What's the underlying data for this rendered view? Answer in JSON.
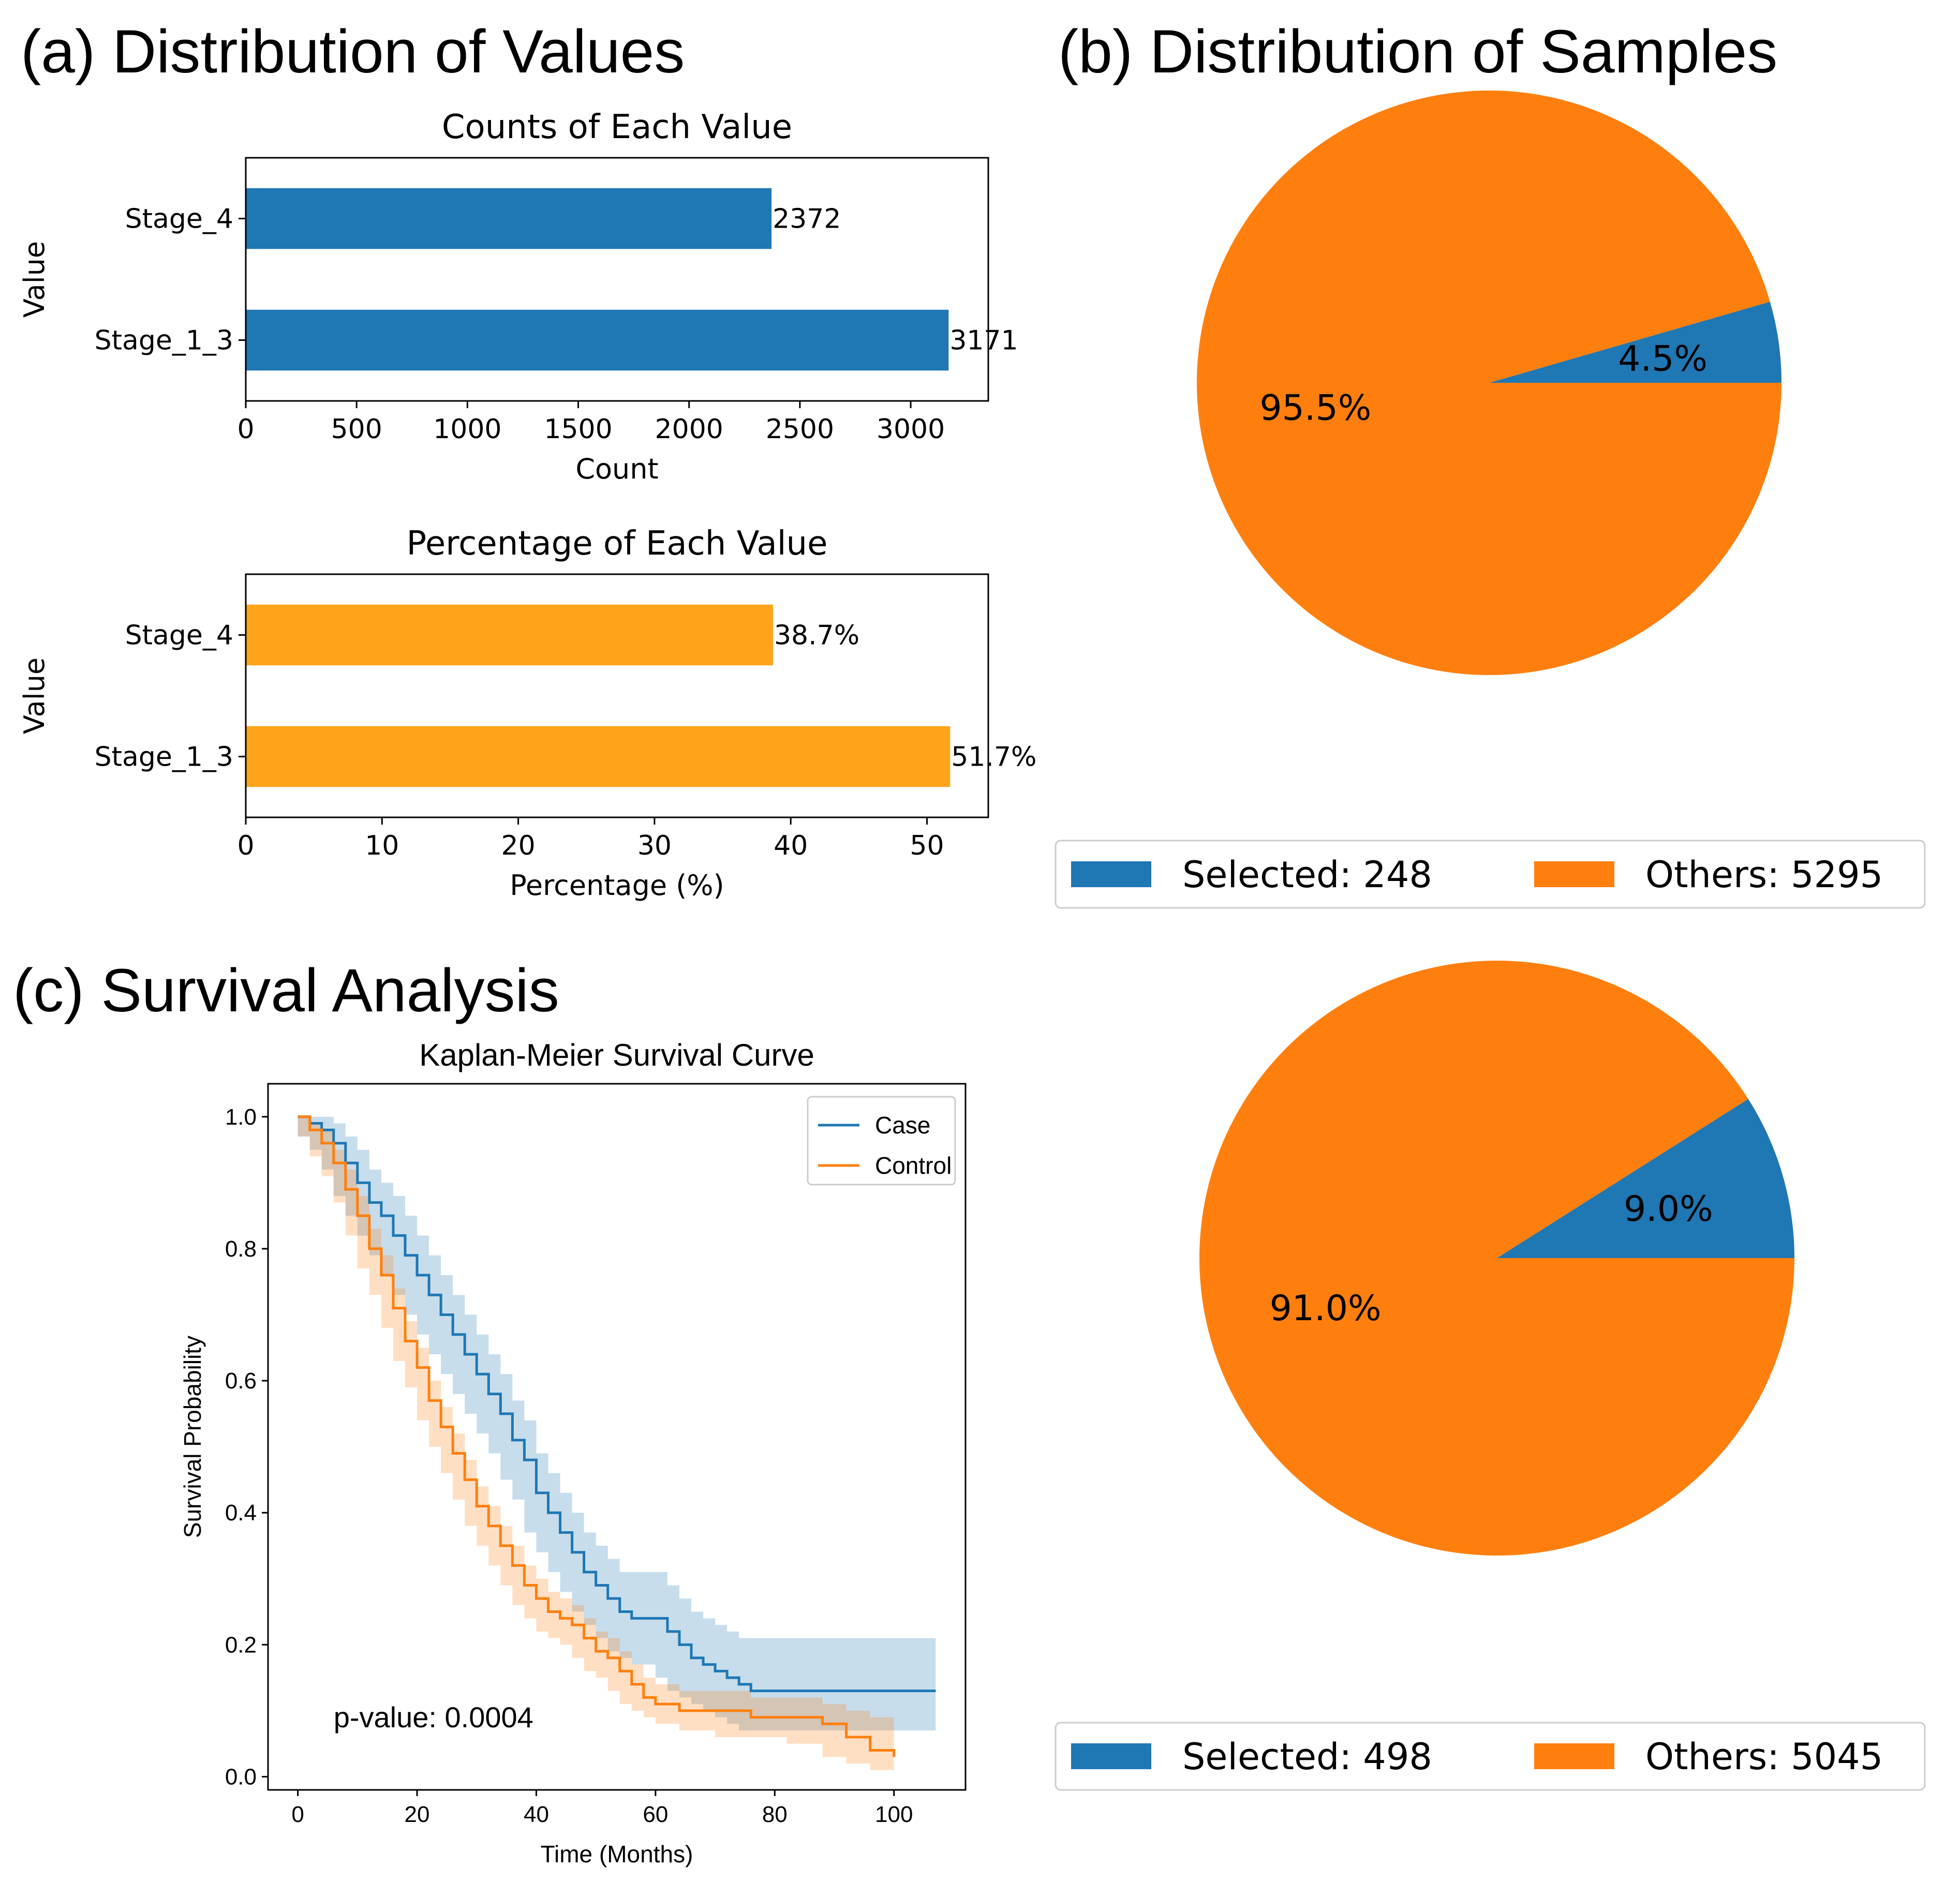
{
  "panels": {
    "a_title": "(a) Distribution of Values",
    "b_title": "(b) Distribution of Samples",
    "c_title": "(c) Survival Analysis"
  },
  "colors": {
    "blue": "#1f77b4",
    "orange": "#ff7f0e",
    "amber": "#ffa41b"
  },
  "chart_data": [
    {
      "id": "counts",
      "type": "bar",
      "orientation": "horizontal",
      "title": "Counts of Each Value",
      "xlabel": "Count",
      "ylabel": "Value",
      "categories": [
        "Stage_4",
        "Stage_1_3"
      ],
      "values": [
        2372,
        3171
      ],
      "value_labels": [
        "2372",
        "3171"
      ],
      "xlim": [
        0,
        3350
      ],
      "xticks": [
        0,
        500,
        1000,
        1500,
        2000,
        2500,
        3000
      ],
      "xtick_labels": [
        "0",
        "500",
        "1000",
        "1500",
        "2000",
        "2500",
        "3000"
      ]
    },
    {
      "id": "percentage",
      "type": "bar",
      "orientation": "horizontal",
      "title": "Percentage of Each Value",
      "xlabel": "Percentage (%)",
      "ylabel": "Value",
      "categories": [
        "Stage_4",
        "Stage_1_3"
      ],
      "values": [
        38.7,
        51.7
      ],
      "value_labels": [
        "38.7%",
        "51.7%"
      ],
      "xlim": [
        0,
        54.5
      ],
      "xticks": [
        0,
        10,
        20,
        30,
        40,
        50
      ],
      "xtick_labels": [
        "0",
        "10",
        "20",
        "30",
        "40",
        "50"
      ]
    },
    {
      "id": "pie1",
      "type": "pie",
      "slices": [
        {
          "name": "Selected",
          "value": 248,
          "pct_label": "4.5%"
        },
        {
          "name": "Others",
          "value": 5295,
          "pct_label": "95.5%"
        }
      ],
      "legend": [
        "Selected: 248",
        "Others: 5295"
      ],
      "legend_position": "bottom"
    },
    {
      "id": "pie2",
      "type": "pie",
      "slices": [
        {
          "name": "Selected",
          "value": 498,
          "pct_label": "9.0%"
        },
        {
          "name": "Others",
          "value": 5045,
          "pct_label": "91.0%"
        }
      ],
      "legend": [
        "Selected: 498",
        "Others: 5045"
      ],
      "legend_position": "bottom"
    },
    {
      "id": "km",
      "type": "line",
      "title": "Kaplan-Meier Survival Curve",
      "xlabel": "Time (Months)",
      "ylabel": "Survival Probability",
      "xlim": [
        -5,
        112
      ],
      "ylim": [
        -0.02,
        1.05
      ],
      "xticks": [
        0,
        20,
        40,
        60,
        80,
        100
      ],
      "xtick_labels": [
        "0",
        "20",
        "40",
        "60",
        "80",
        "100"
      ],
      "yticks": [
        0.0,
        0.2,
        0.4,
        0.6,
        0.8,
        1.0
      ],
      "ytick_labels": [
        "0.0",
        "0.2",
        "0.4",
        "0.6",
        "0.8",
        "1.0"
      ],
      "legend": [
        "Case",
        "Control"
      ],
      "legend_position": "top-right",
      "annotation": "p-value: 0.0004",
      "series": [
        {
          "name": "Case",
          "x": [
            0,
            2,
            4,
            6,
            8,
            10,
            12,
            14,
            16,
            18,
            20,
            22,
            24,
            26,
            28,
            30,
            32,
            34,
            36,
            38,
            40,
            42,
            44,
            46,
            48,
            50,
            52,
            54,
            56,
            58,
            60,
            62,
            64,
            66,
            68,
            70,
            72,
            74,
            76,
            80,
            90,
            107
          ],
          "y": [
            1.0,
            0.99,
            0.98,
            0.96,
            0.93,
            0.9,
            0.87,
            0.85,
            0.82,
            0.79,
            0.76,
            0.73,
            0.7,
            0.67,
            0.64,
            0.61,
            0.58,
            0.55,
            0.51,
            0.48,
            0.43,
            0.4,
            0.37,
            0.34,
            0.31,
            0.29,
            0.27,
            0.25,
            0.24,
            0.24,
            0.24,
            0.22,
            0.2,
            0.18,
            0.17,
            0.16,
            0.15,
            0.14,
            0.13,
            0.13,
            0.13,
            0.13
          ],
          "ci_low": [
            1.0,
            0.97,
            0.95,
            0.92,
            0.88,
            0.85,
            0.82,
            0.79,
            0.76,
            0.73,
            0.7,
            0.67,
            0.64,
            0.61,
            0.58,
            0.55,
            0.52,
            0.49,
            0.45,
            0.42,
            0.37,
            0.34,
            0.31,
            0.28,
            0.25,
            0.23,
            0.21,
            0.19,
            0.18,
            0.17,
            0.17,
            0.15,
            0.13,
            0.12,
            0.11,
            0.1,
            0.09,
            0.08,
            0.07,
            0.07,
            0.07,
            0.07
          ],
          "ci_high": [
            1.0,
            1.0,
            1.0,
            0.99,
            0.97,
            0.95,
            0.92,
            0.9,
            0.88,
            0.85,
            0.82,
            0.79,
            0.76,
            0.73,
            0.7,
            0.67,
            0.64,
            0.61,
            0.57,
            0.54,
            0.49,
            0.46,
            0.43,
            0.4,
            0.37,
            0.35,
            0.33,
            0.31,
            0.31,
            0.31,
            0.31,
            0.29,
            0.27,
            0.25,
            0.24,
            0.23,
            0.22,
            0.21,
            0.21,
            0.21,
            0.21,
            0.21
          ]
        },
        {
          "name": "Control",
          "x": [
            0,
            2,
            4,
            6,
            8,
            10,
            12,
            14,
            16,
            18,
            20,
            22,
            24,
            26,
            28,
            30,
            32,
            34,
            36,
            38,
            40,
            42,
            44,
            46,
            48,
            50,
            52,
            54,
            56,
            58,
            60,
            64,
            70,
            76,
            82,
            88,
            92,
            96,
            100
          ],
          "y": [
            1.0,
            0.98,
            0.96,
            0.93,
            0.89,
            0.85,
            0.8,
            0.76,
            0.71,
            0.66,
            0.62,
            0.57,
            0.53,
            0.49,
            0.45,
            0.41,
            0.38,
            0.35,
            0.32,
            0.29,
            0.27,
            0.25,
            0.24,
            0.23,
            0.21,
            0.19,
            0.18,
            0.16,
            0.14,
            0.12,
            0.11,
            0.1,
            0.1,
            0.09,
            0.09,
            0.08,
            0.06,
            0.04,
            0.03
          ],
          "ci_low": [
            1.0,
            0.97,
            0.94,
            0.91,
            0.87,
            0.82,
            0.77,
            0.73,
            0.68,
            0.63,
            0.59,
            0.54,
            0.5,
            0.46,
            0.42,
            0.38,
            0.35,
            0.32,
            0.29,
            0.26,
            0.24,
            0.22,
            0.21,
            0.2,
            0.18,
            0.16,
            0.15,
            0.13,
            0.11,
            0.1,
            0.09,
            0.08,
            0.07,
            0.06,
            0.06,
            0.05,
            0.03,
            0.02,
            0.01
          ],
          "ci_high": [
            1.0,
            0.99,
            0.98,
            0.95,
            0.92,
            0.88,
            0.83,
            0.79,
            0.74,
            0.69,
            0.65,
            0.6,
            0.56,
            0.52,
            0.48,
            0.44,
            0.41,
            0.38,
            0.35,
            0.32,
            0.3,
            0.28,
            0.27,
            0.26,
            0.24,
            0.22,
            0.21,
            0.19,
            0.17,
            0.15,
            0.14,
            0.13,
            0.13,
            0.12,
            0.12,
            0.11,
            0.1,
            0.09,
            0.1
          ]
        }
      ]
    }
  ]
}
